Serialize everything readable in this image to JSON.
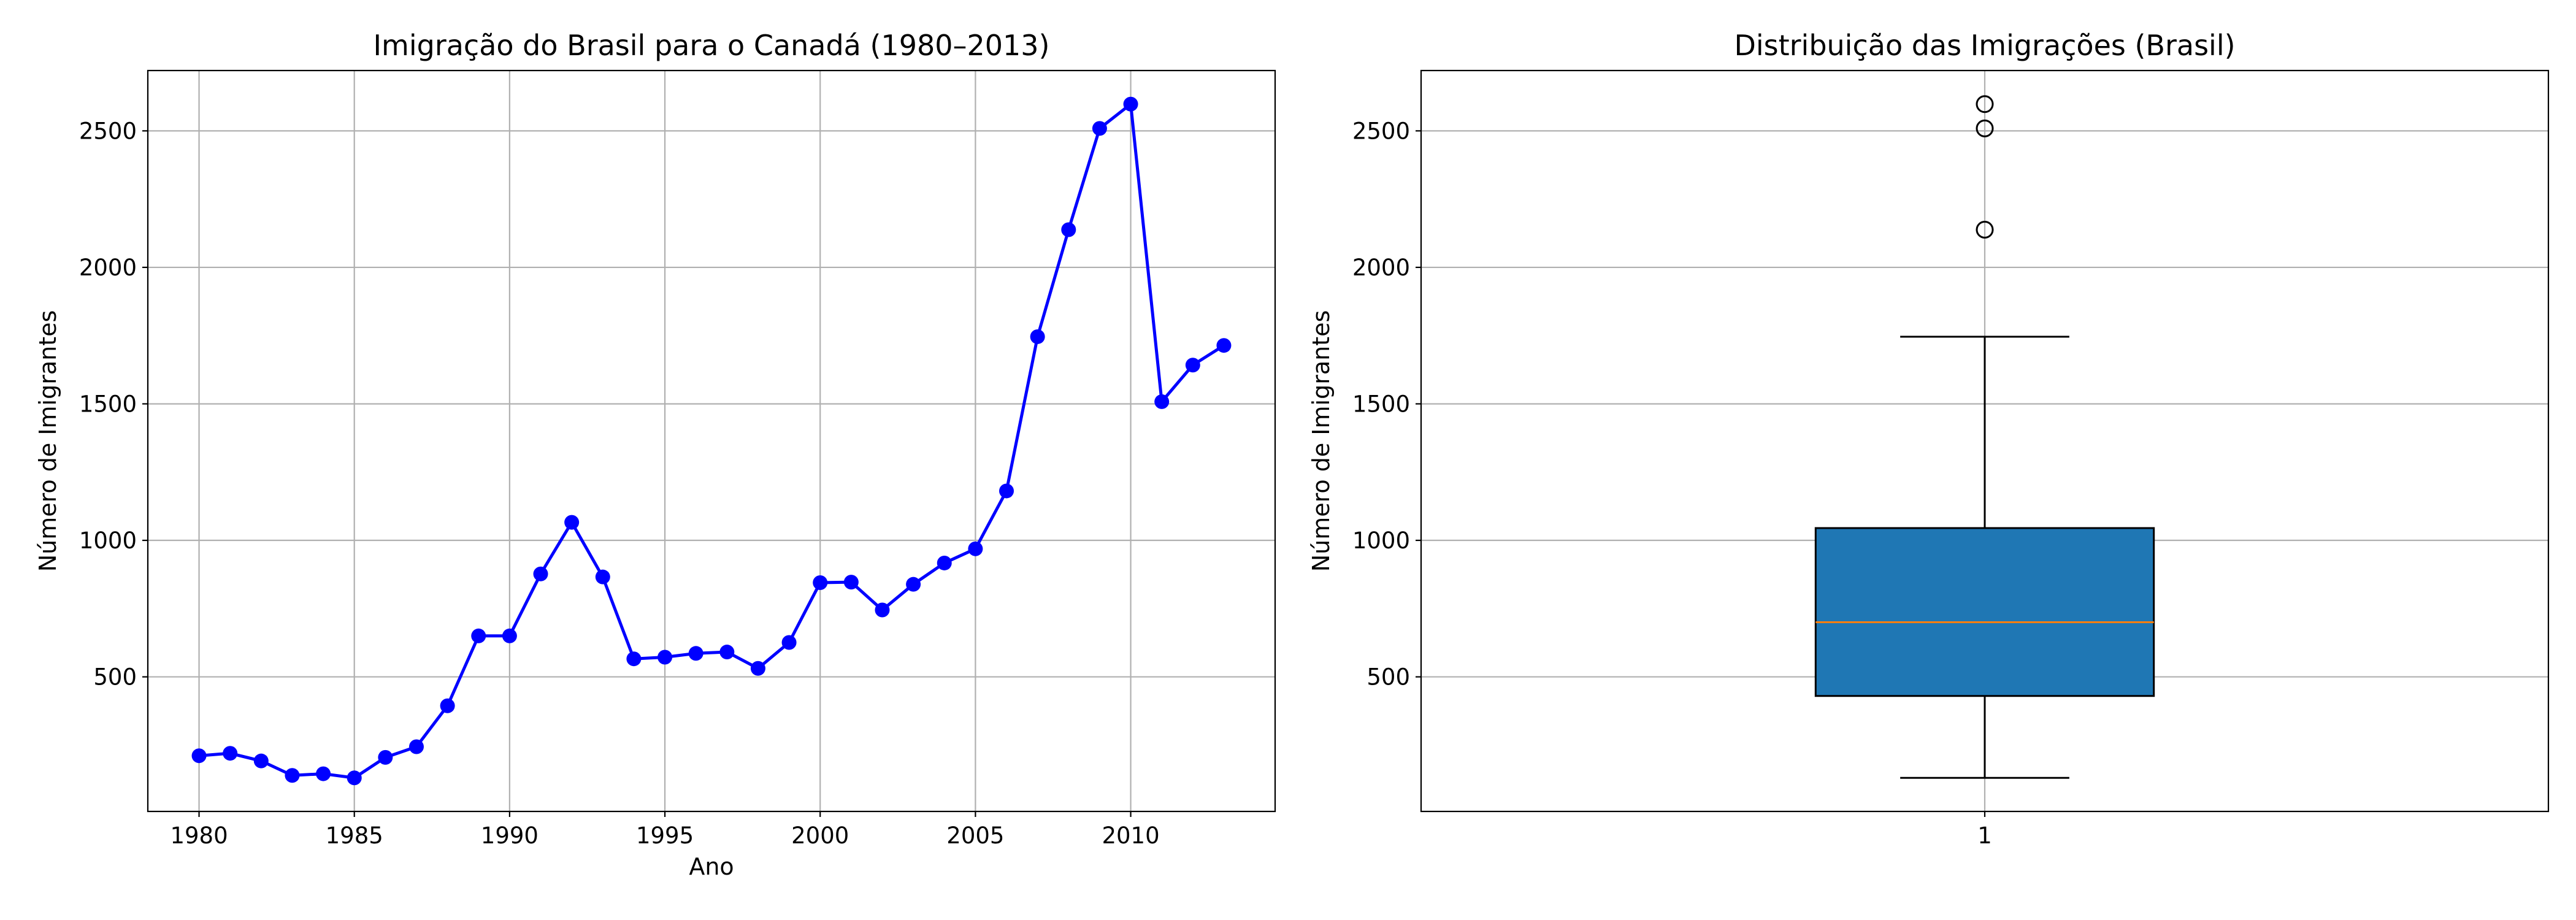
{
  "chart_data": [
    {
      "type": "line",
      "title": "Imigração do Brasil para o Canadá (1980–2013)",
      "xlabel": "Ano",
      "ylabel": "Número de Imigrantes",
      "x": [
        1980,
        1981,
        1982,
        1983,
        1984,
        1985,
        1986,
        1987,
        1988,
        1989,
        1990,
        1991,
        1992,
        1993,
        1994,
        1995,
        1996,
        1997,
        1998,
        1999,
        2000,
        2001,
        2002,
        2003,
        2004,
        2005,
        2006,
        2007,
        2008,
        2009,
        2010,
        2011,
        2012,
        2013
      ],
      "values": [
        211,
        220,
        192,
        139,
        145,
        130,
        205,
        244,
        394,
        650,
        650,
        877,
        1066,
        866,
        566,
        572,
        586,
        591,
        531,
        626,
        845,
        847,
        745,
        839,
        917,
        969,
        1181,
        1746,
        2138,
        2509,
        2598,
        1508,
        1642,
        1714
      ],
      "color": "#0000ff",
      "marker": true,
      "xlim": [
        1978.35,
        2014.65
      ],
      "xticks": [
        1980,
        1985,
        1990,
        1995,
        2000,
        2005,
        2010
      ],
      "ylim": [
        7,
        2721
      ],
      "yticks": [
        500,
        1000,
        1500,
        2000,
        2500
      ],
      "grid": true
    },
    {
      "type": "box",
      "title": "Distribuição das Imigrações (Brasil)",
      "ylabel": "Número de Imigrantes",
      "boxes": [
        {
          "whislo": 130,
          "q1": 430,
          "med": 700,
          "q3": 1045,
          "whishi": 1746,
          "fliers": [
            2138,
            2509,
            2598
          ]
        }
      ],
      "color": "#1f77b4",
      "median_color": "#ff7f0e",
      "xlim": [
        0.5,
        1.5
      ],
      "xticks": [
        1
      ],
      "ylim": [
        7,
        2721
      ],
      "yticks": [
        500,
        1000,
        1500,
        2000,
        2500
      ],
      "grid": true
    }
  ]
}
